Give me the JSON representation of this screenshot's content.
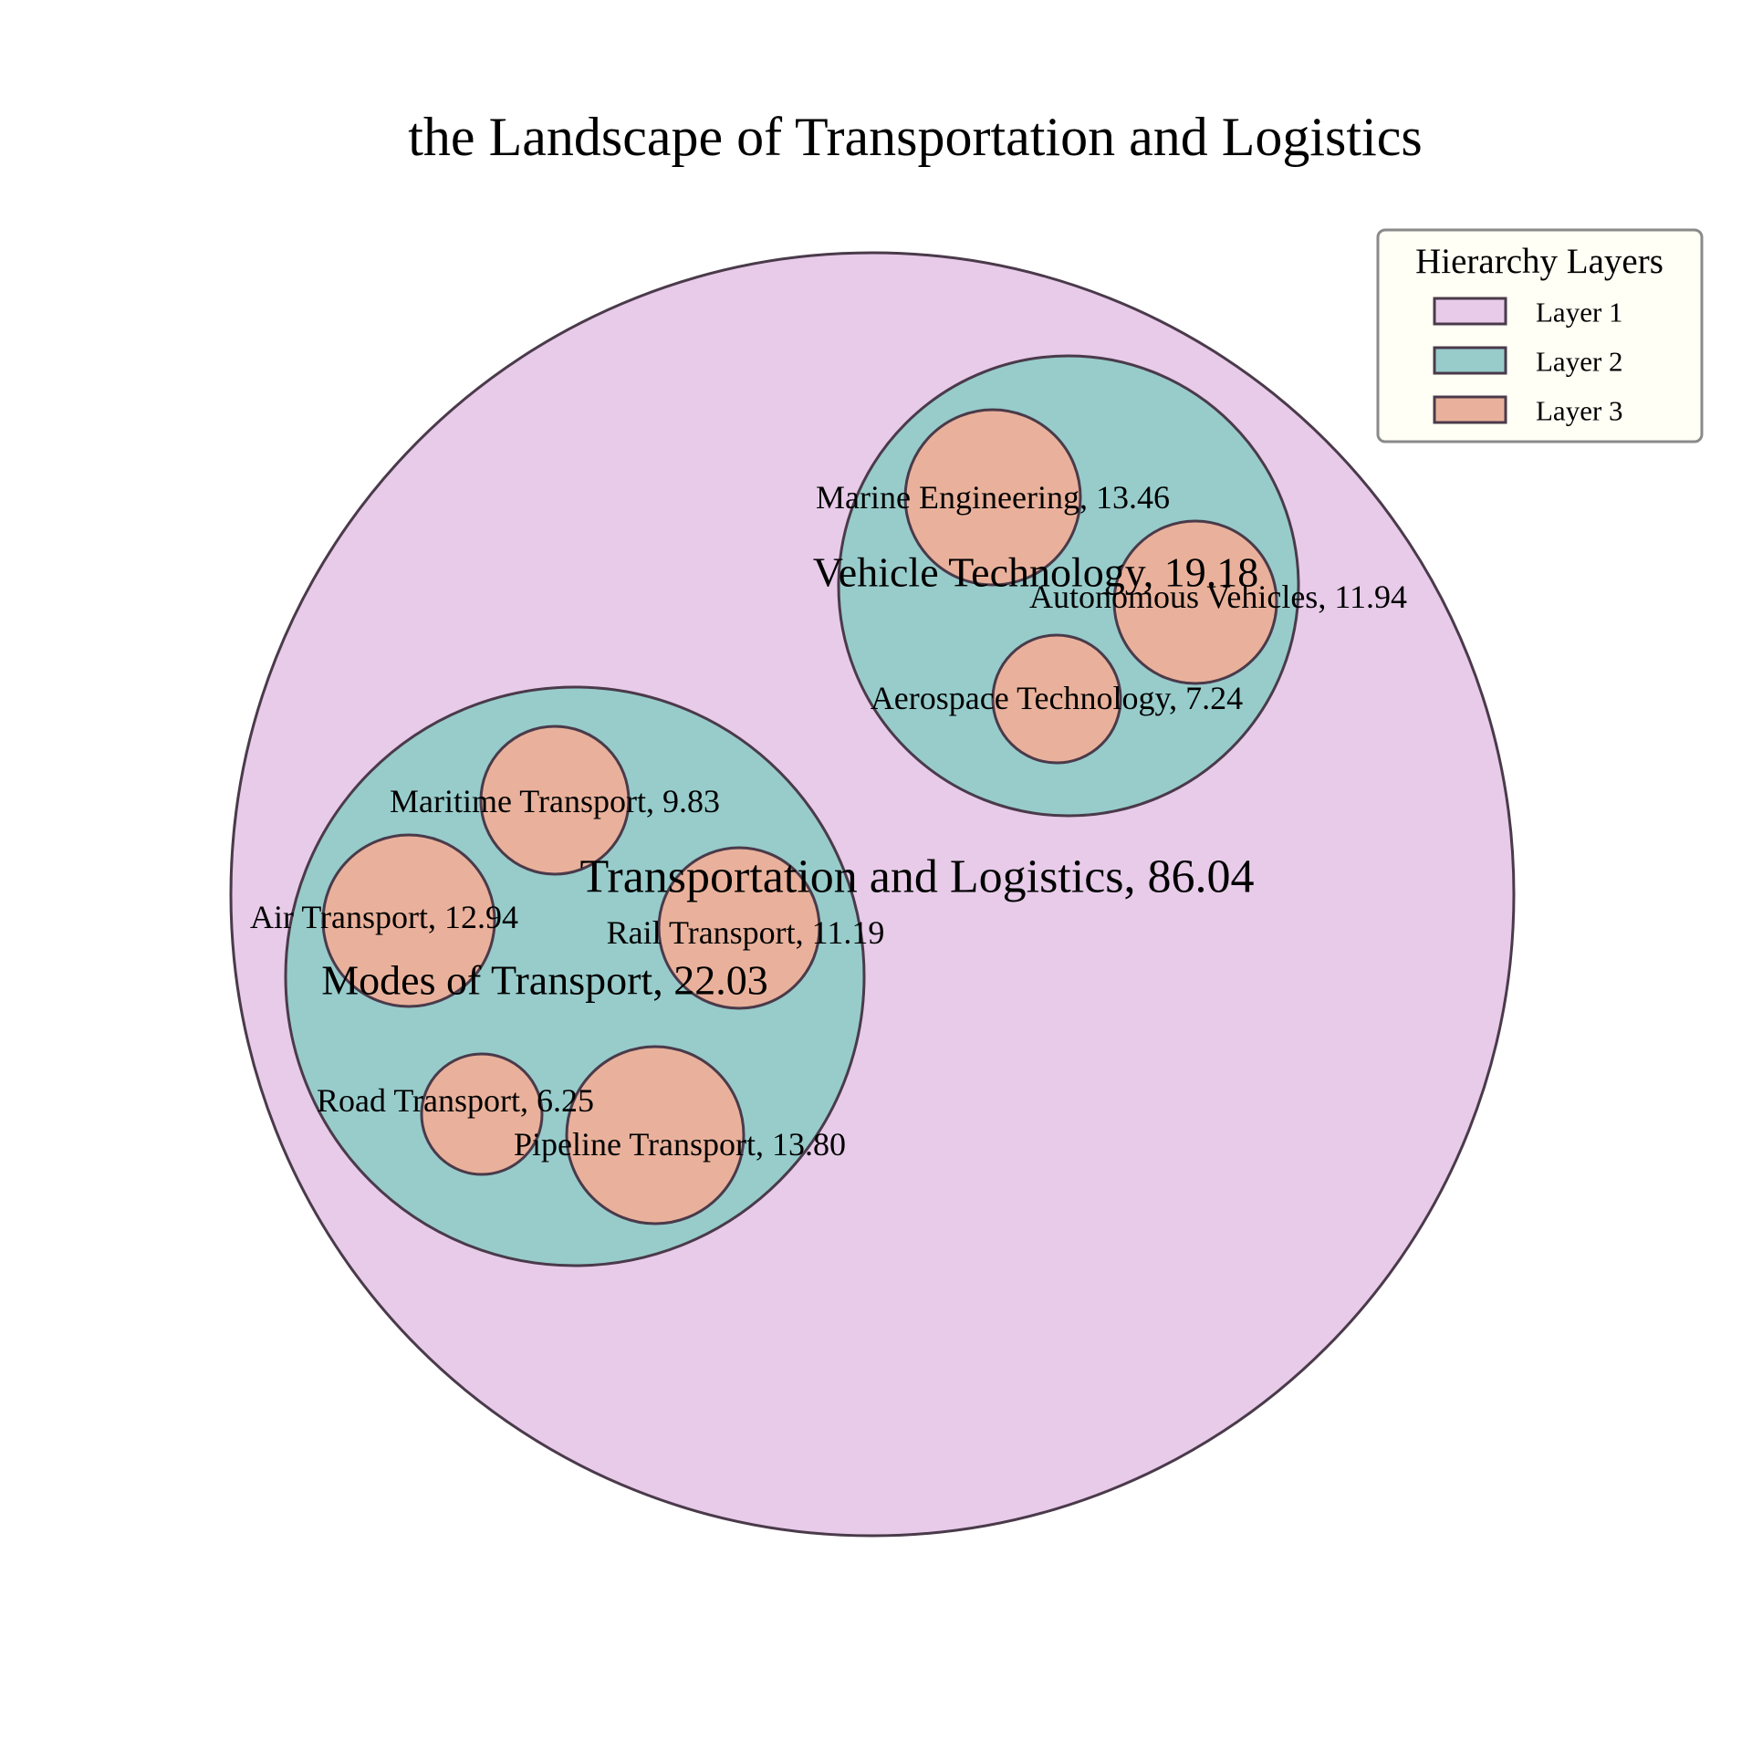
{
  "chart_data": {
    "type": "circle-packing",
    "title": "the Landscape of Transportation and Logistics",
    "legend": {
      "title": "Hierarchy Layers",
      "placement": "top-right",
      "items": [
        {
          "label": "Layer 1",
          "color": "#e7cbe9"
        },
        {
          "label": "Layer 2",
          "color": "#97cccb"
        },
        {
          "label": "Layer 3",
          "color": "#e9b19b"
        }
      ]
    },
    "colors": {
      "layer1": "#e7cbe9",
      "layer2": "#97cccb",
      "layer3": "#e9b19b",
      "edge": "#4a3a4a",
      "legend_bg": "#fffff5",
      "legend_edge": "#8a8a8a"
    },
    "nodes": [
      {
        "id": "root",
        "name": "Transportation and Logistics",
        "value": 86.04,
        "layer": 1,
        "label": "Transportation and Logistics, 86.04"
      },
      {
        "id": "vt",
        "name": "Vehicle Technology",
        "value": 19.18,
        "layer": 2,
        "parent": "root",
        "label": "Vehicle Technology, 19.18"
      },
      {
        "id": "mt",
        "name": "Modes of Transport",
        "value": 22.03,
        "layer": 2,
        "parent": "root",
        "label": "Modes of Transport, 22.03"
      },
      {
        "id": "me",
        "name": "Marine Engineering",
        "value": 13.46,
        "layer": 3,
        "parent": "vt",
        "label": "Marine Engineering, 13.46"
      },
      {
        "id": "av",
        "name": "Autonomous Vehicles",
        "value": 11.94,
        "layer": 3,
        "parent": "vt",
        "label": "Autonomous Vehicles, 11.94"
      },
      {
        "id": "at",
        "name": "Aerospace Technology",
        "value": 7.24,
        "layer": 3,
        "parent": "vt",
        "label": "Aerospace Technology, 7.24"
      },
      {
        "id": "mar",
        "name": "Maritime Transport",
        "value": 9.83,
        "layer": 3,
        "parent": "mt",
        "label": "Maritime Transport, 9.83"
      },
      {
        "id": "air",
        "name": "Air Transport",
        "value": 12.94,
        "layer": 3,
        "parent": "mt",
        "label": "Air Transport, 12.94"
      },
      {
        "id": "rail",
        "name": "Rail Transport",
        "value": 11.19,
        "layer": 3,
        "parent": "mt",
        "label": "Rail Transport, 11.19"
      },
      {
        "id": "road",
        "name": "Road Transport",
        "value": 6.25,
        "layer": 3,
        "parent": "mt",
        "label": "Road Transport, 6.25"
      },
      {
        "id": "pipe",
        "name": "Pipeline Transport",
        "value": 13.8,
        "layer": 3,
        "parent": "mt",
        "label": "Pipeline Transport, 13.80"
      }
    ]
  }
}
